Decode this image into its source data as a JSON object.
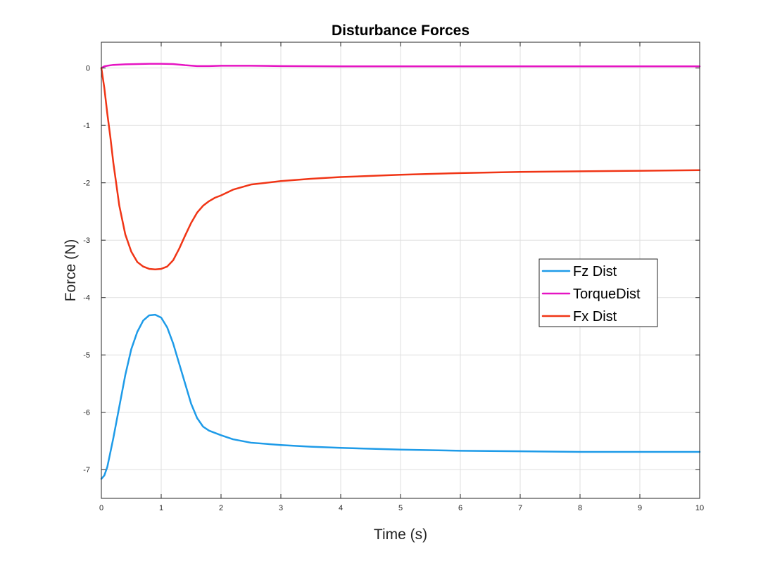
{
  "chart_data": {
    "type": "line",
    "title": "Disturbance Forces",
    "xlabel": "Time (s)",
    "ylabel": "Force (N)",
    "xlim": [
      0,
      10
    ],
    "ylim": [
      -7.5,
      0.45
    ],
    "xticks": [
      0,
      1,
      2,
      3,
      4,
      5,
      6,
      7,
      8,
      9,
      10
    ],
    "yticks": [
      0,
      -1,
      -2,
      -3,
      -4,
      -5,
      -6,
      -7
    ],
    "xtick_labels": [
      "0",
      "1",
      "2",
      "3",
      "4",
      "5",
      "6",
      "7",
      "8",
      "9",
      "10"
    ],
    "ytick_labels": [
      "0",
      "-1",
      "-2",
      "-3",
      "-4",
      "-5",
      "-6",
      "-7"
    ],
    "grid": true,
    "legend_position": "right-center",
    "series": [
      {
        "name": "Fz Dist",
        "color": "#1e9be8",
        "x": [
          0,
          0.05,
          0.1,
          0.2,
          0.3,
          0.4,
          0.5,
          0.6,
          0.7,
          0.8,
          0.9,
          1.0,
          1.1,
          1.2,
          1.3,
          1.4,
          1.5,
          1.6,
          1.7,
          1.8,
          1.9,
          2.0,
          2.2,
          2.5,
          3.0,
          3.5,
          4.0,
          5.0,
          6.0,
          7.0,
          8.0,
          9.0,
          10.0
        ],
        "y": [
          -7.16,
          -7.1,
          -6.95,
          -6.45,
          -5.9,
          -5.35,
          -4.9,
          -4.6,
          -4.4,
          -4.31,
          -4.3,
          -4.35,
          -4.52,
          -4.8,
          -5.15,
          -5.5,
          -5.85,
          -6.1,
          -6.25,
          -6.32,
          -6.36,
          -6.4,
          -6.47,
          -6.53,
          -6.57,
          -6.6,
          -6.62,
          -6.65,
          -6.67,
          -6.68,
          -6.69,
          -6.69,
          -6.69
        ]
      },
      {
        "name": "TorqueDist",
        "color": "#e614c3",
        "x": [
          0,
          0.05,
          0.1,
          0.2,
          0.4,
          0.6,
          0.8,
          1.0,
          1.2,
          1.4,
          1.6,
          1.8,
          2.0,
          2.5,
          3.0,
          4.0,
          5.0,
          6.0,
          7.0,
          8.0,
          9.0,
          10.0
        ],
        "y": [
          0,
          0.03,
          0.04,
          0.055,
          0.065,
          0.07,
          0.075,
          0.075,
          0.07,
          0.05,
          0.035,
          0.035,
          0.04,
          0.04,
          0.035,
          0.03,
          0.03,
          0.03,
          0.03,
          0.03,
          0.03,
          0.03
        ]
      },
      {
        "name": "Fx Dist",
        "color": "#f03516",
        "x": [
          0,
          0.05,
          0.1,
          0.15,
          0.2,
          0.3,
          0.4,
          0.5,
          0.6,
          0.7,
          0.8,
          0.9,
          1.0,
          1.1,
          1.2,
          1.3,
          1.4,
          1.5,
          1.6,
          1.7,
          1.8,
          1.9,
          2.0,
          2.2,
          2.5,
          3.0,
          3.5,
          4.0,
          5.0,
          6.0,
          7.0,
          8.0,
          9.0,
          10.0
        ],
        "y": [
          0,
          -0.35,
          -0.8,
          -1.2,
          -1.65,
          -2.4,
          -2.9,
          -3.2,
          -3.38,
          -3.46,
          -3.5,
          -3.51,
          -3.5,
          -3.46,
          -3.35,
          -3.15,
          -2.92,
          -2.7,
          -2.52,
          -2.4,
          -2.32,
          -2.26,
          -2.22,
          -2.12,
          -2.03,
          -1.97,
          -1.93,
          -1.9,
          -1.86,
          -1.83,
          -1.81,
          -1.8,
          -1.79,
          -1.78
        ]
      }
    ]
  }
}
